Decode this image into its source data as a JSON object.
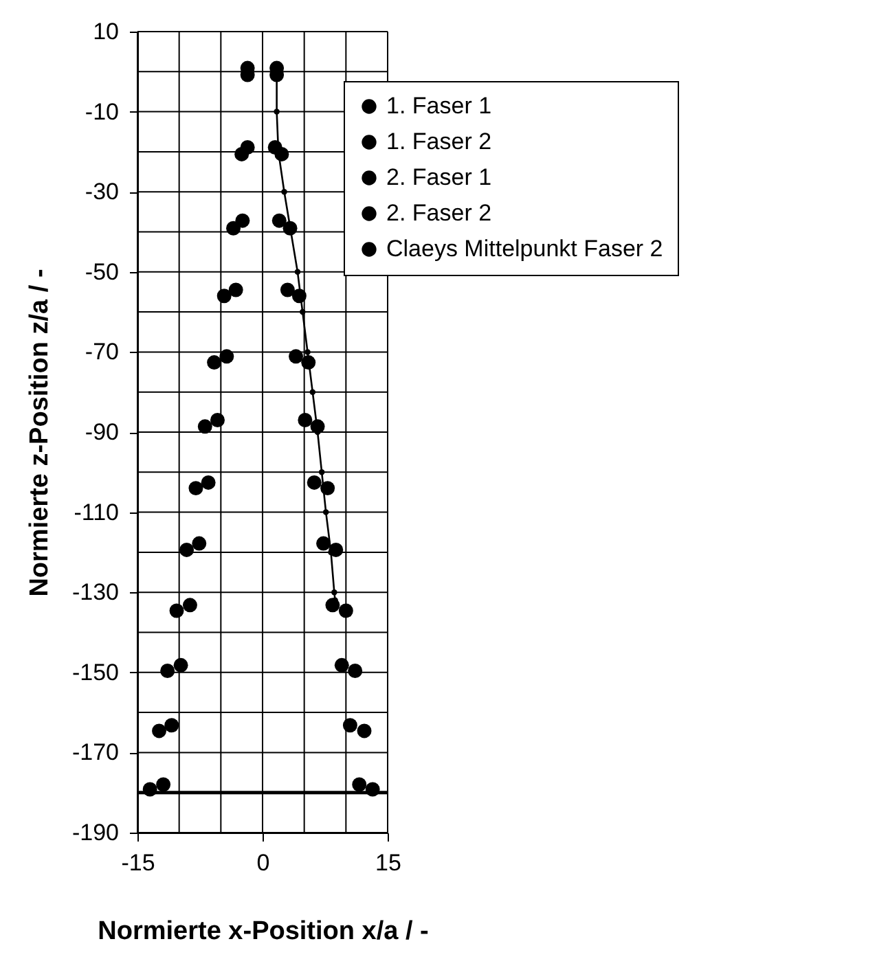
{
  "chart_data": {
    "type": "scatter",
    "xlabel": "Normierte x-Position x/a / -",
    "ylabel": "Normierte z-Position z/a / -",
    "xlim": [
      -15,
      15
    ],
    "xticks": [
      -15,
      {
        "value": -10,
        "label": null
      },
      {
        "value": -5,
        "label": null
      },
      0,
      {
        "value": 5,
        "label": null
      },
      {
        "value": 10,
        "label": null
      },
      15
    ],
    "ylim": [
      -190,
      10
    ],
    "yticks": [
      10,
      {
        "value": 0,
        "label": null
      },
      -10,
      {
        "value": -20,
        "label": null
      },
      -30,
      {
        "value": -40,
        "label": null
      },
      -50,
      {
        "value": -60,
        "label": null
      },
      -70,
      {
        "value": -80,
        "label": null
      },
      -90,
      {
        "value": -100,
        "label": null
      },
      -110,
      {
        "value": -120,
        "label": null
      },
      -130,
      {
        "value": -140,
        "label": null
      },
      -150,
      {
        "value": -160,
        "label": null
      },
      -170,
      {
        "value": -180,
        "label": null
      },
      -190
    ],
    "grid": true,
    "legend": "top right",
    "marker": "circle",
    "ref_lines": [
      {
        "axis": "y",
        "value": -180,
        "color": "#000000"
      }
    ],
    "series": [
      {
        "name": "1. Faser 1",
        "color": "#000000",
        "x": [
          -1.8,
          -1.8,
          -2.4,
          -3.2,
          -4.3,
          -5.4,
          -6.5,
          -7.6,
          -8.7,
          -9.8,
          -10.9,
          -11.9
        ],
        "values": [
          0.9,
          -18.9,
          -37.2,
          -54.5,
          -71.1,
          -87.0,
          -102.6,
          -117.8,
          -133.2,
          -148.2,
          -163.2,
          -178.0
        ]
      },
      {
        "name": "1. Faser 2",
        "color": "#000000",
        "x": [
          1.7,
          1.5,
          2.0,
          3.0,
          4.0,
          5.1,
          6.2,
          7.3,
          8.4,
          9.5,
          10.5,
          11.6
        ],
        "values": [
          0.9,
          -18.9,
          -37.2,
          -54.5,
          -71.1,
          -87.0,
          -102.6,
          -117.8,
          -133.2,
          -148.2,
          -163.2,
          -178.0
        ]
      },
      {
        "name": "2. Faser 1",
        "color": "#000000",
        "x": [
          -1.8,
          -2.5,
          -3.5,
          -4.6,
          -5.8,
          -6.9,
          -8.0,
          -9.1,
          -10.3,
          -11.4,
          -12.4,
          -13.5
        ],
        "values": [
          -0.8,
          -20.6,
          -39.1,
          -56.0,
          -72.6,
          -88.6,
          -104.0,
          -119.4,
          -134.6,
          -149.6,
          -164.6,
          -179.2
        ]
      },
      {
        "name": "2. Faser 2",
        "color": "#000000",
        "x": [
          1.7,
          2.3,
          3.3,
          4.4,
          5.5,
          6.6,
          7.8,
          8.8,
          10.0,
          11.1,
          12.2,
          13.2
        ],
        "values": [
          -0.8,
          -20.6,
          -39.1,
          -56.0,
          -72.6,
          -88.6,
          -104.0,
          -119.4,
          -134.6,
          -149.6,
          -164.6,
          -179.2
        ]
      },
      {
        "name": "Claeys Mittelpunkt Faser 2",
        "type": "line",
        "color": "#000000",
        "x": [
          1.7,
          1.7,
          1.9,
          2.6,
          3.4,
          4.2,
          4.8,
          5.4,
          6.0,
          6.6,
          7.1,
          7.6,
          8.2,
          8.6,
          8.7
        ],
        "values": [
          1,
          -10,
          -20,
          -30,
          -40,
          -50,
          -60,
          -70,
          -80,
          -90,
          -100,
          -110,
          -120,
          -130,
          -132
        ]
      }
    ]
  }
}
